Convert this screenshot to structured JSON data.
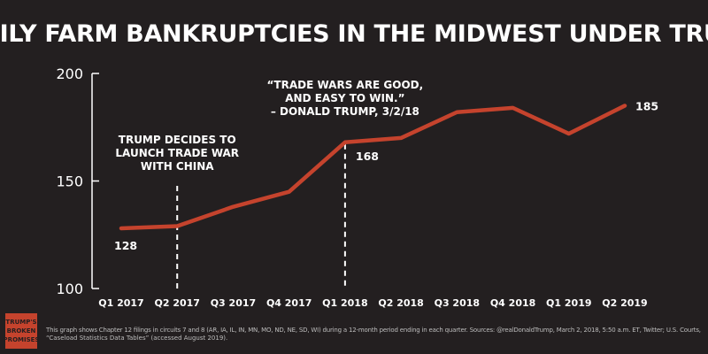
{
  "chart_data": {
    "type": "line",
    "title": "FAMILY FARM BANKRUPTCIES IN THE MIDWEST UNDER TRUMP",
    "categories": [
      "Q1 2017",
      "Q2 2017",
      "Q3 2017",
      "Q4 2017",
      "Q1 2018",
      "Q2 2018",
      "Q3 2018",
      "Q4 2018",
      "Q1 2019",
      "Q2 2019"
    ],
    "series": [
      {
        "values": [
          128,
          129,
          138,
          145,
          168,
          170,
          182,
          184,
          172,
          185
        ]
      }
    ],
    "ylim": [
      100,
      200
    ],
    "yticks": [
      "100",
      "150",
      "200"
    ],
    "line_color": "#c5432d",
    "data_labels": [
      {
        "index": 0,
        "text": "128"
      },
      {
        "index": 4,
        "text": "168"
      },
      {
        "index": 9,
        "text": "185"
      }
    ],
    "annotations": [
      {
        "index": 1,
        "lines": [
          "TRUMP DECIDES TO",
          "LAUNCH TRADE WAR",
          "WITH CHINA"
        ]
      },
      {
        "index": 4,
        "lines": [
          "“TRADE WARS ARE GOOD,",
          "AND EASY TO WIN.”",
          "– DONALD TRUMP, 3/2/18"
        ]
      }
    ],
    "footnote": [
      "This graph shows Chapter 12 filings in circuits 7 and 8 (AR, IA, IL, IN, MN, MO, ND, NE, SD, WI) during a 12-month period ending in each quarter. Sources: @realDonaldTrump, March 2, 2018, 5:50 a.m. ET, Twitter; U.S. Courts,",
      "“Caseload Statistics Data Tables” (accessed August 2019)."
    ]
  },
  "logo": {
    "lines": [
      "TRUMP'S",
      "BROKEN",
      "PROMISES"
    ],
    "bg_color": "#c5432d"
  }
}
